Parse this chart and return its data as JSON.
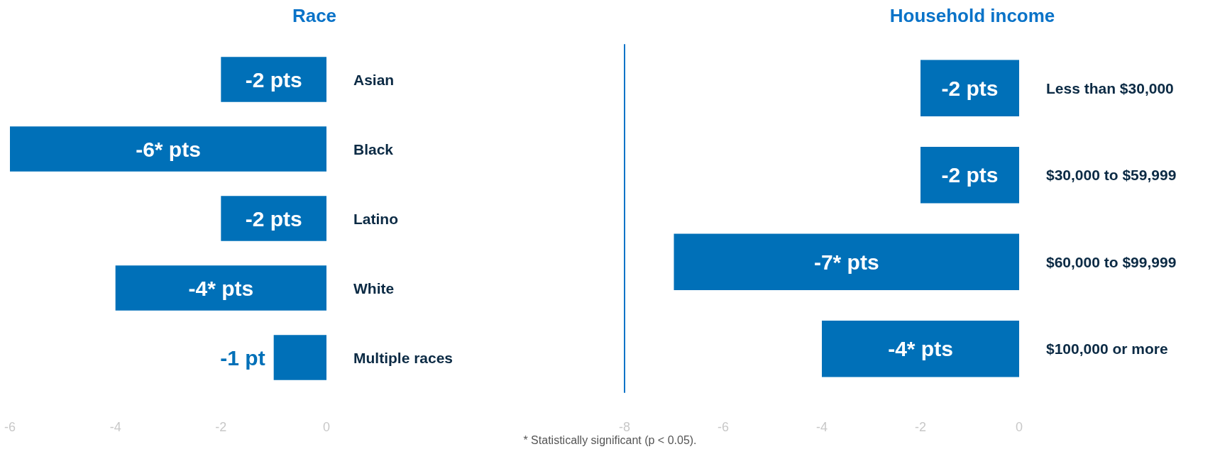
{
  "chart_data": [
    {
      "type": "bar",
      "orientation": "horizontal",
      "title": "Race",
      "categories": [
        "Asian",
        "Black",
        "Latino",
        "White",
        "Multiple races"
      ],
      "values": [
        -2,
        -6,
        -2,
        -4,
        -1
      ],
      "value_labels": [
        "-2 pts",
        "-6* pts",
        "-2 pts",
        "-4* pts",
        "-1 pt"
      ],
      "color": "#0070b8",
      "xlim": [
        -6,
        0
      ],
      "xticks": [
        -6,
        -4,
        -2,
        0
      ],
      "grid": false,
      "annotations": [
        "* Statistically significant (p < 0.05)."
      ]
    },
    {
      "type": "bar",
      "orientation": "horizontal",
      "title": "Household income",
      "categories": [
        "Less than $30,000",
        "$30,000 to $59,999",
        "$60,000 to $99,999",
        "$100,000 or more"
      ],
      "values": [
        -2,
        -2,
        -7,
        -4
      ],
      "value_labels": [
        "-2 pts",
        "-2 pts",
        "-7* pts",
        "-4* pts"
      ],
      "color": "#0070b8",
      "xlim": [
        -8,
        0
      ],
      "xticks": [
        -8,
        -6,
        -4,
        -2,
        0
      ],
      "grid": false
    }
  ]
}
